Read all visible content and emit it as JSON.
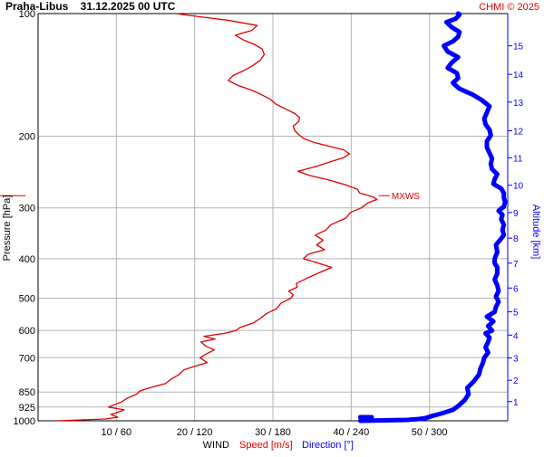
{
  "header": {
    "title": "Praha-Libus    31.12.2025 00 UTC",
    "credit": "CHMI © 2025"
  },
  "colors": {
    "speed": "#e00000",
    "direction": "#0000ff",
    "grid": "#b3b3b3",
    "text": "#000000"
  },
  "chart_data": {
    "type": "line",
    "ylabel": "Pressure [hPa]",
    "y2label": "Altitude [km]",
    "xlabel_parts": {
      "wind": "WIND",
      "speed": "Speed [m/s]",
      "direction": "Direction [°]"
    },
    "y_scale": "log",
    "ylim": [
      1000,
      100
    ],
    "pressure_ticks": [
      {
        "p": 100,
        "label": "100"
      },
      {
        "p": 200,
        "label": "200"
      },
      {
        "p": 300,
        "label": "300"
      },
      {
        "p": 400,
        "label": "400"
      },
      {
        "p": 500,
        "label": "500"
      },
      {
        "p": 600,
        "label": "600"
      },
      {
        "p": 700,
        "label": "700"
      },
      {
        "p": 850,
        "label": "850"
      },
      {
        "p": 925,
        "label": "925"
      },
      {
        "p": 1000,
        "label": "1000"
      }
    ],
    "x_ticks": [
      {
        "speed": 10,
        "dir": 60,
        "label": "10 / 60"
      },
      {
        "speed": 20,
        "dir": 120,
        "label": "20 / 120"
      },
      {
        "speed": 30,
        "dir": 180,
        "label": "30 / 180"
      },
      {
        "speed": 40,
        "dir": 240,
        "label": "40 / 240"
      },
      {
        "speed": 50,
        "dir": 300,
        "label": "50 / 300"
      }
    ],
    "speed_range": [
      0,
      60
    ],
    "direction_range": [
      0,
      360
    ],
    "altitude_ticks": [
      {
        "p": 897,
        "label": "1"
      },
      {
        "p": 795,
        "label": "2"
      },
      {
        "p": 701,
        "label": "3"
      },
      {
        "p": 616,
        "label": "4"
      },
      {
        "p": 540,
        "label": "5"
      },
      {
        "p": 472,
        "label": "6"
      },
      {
        "p": 410,
        "label": "7"
      },
      {
        "p": 356,
        "label": "8"
      },
      {
        "p": 308,
        "label": "9"
      },
      {
        "p": 264,
        "label": "10"
      },
      {
        "p": 226,
        "label": "11"
      },
      {
        "p": 194,
        "label": "12"
      },
      {
        "p": 165,
        "label": "13"
      },
      {
        "p": 141,
        "label": "14"
      },
      {
        "p": 120,
        "label": "15"
      }
    ],
    "max_wind": {
      "label": "MXWS",
      "p": 280,
      "speed": 43.3
    },
    "series": [
      {
        "name": "Speed [m/s]",
        "points": [
          [
            1000,
            2.4
          ],
          [
            990,
            8.6
          ],
          [
            980,
            10.2
          ],
          [
            965,
            9.3
          ],
          [
            948,
            10.5
          ],
          [
            940,
            11.0
          ],
          [
            925,
            9.0
          ],
          [
            900,
            10.6
          ],
          [
            880,
            11.4
          ],
          [
            860,
            12.6
          ],
          [
            845,
            13.0
          ],
          [
            830,
            14.2
          ],
          [
            810,
            16.3
          ],
          [
            790,
            17.0
          ],
          [
            770,
            18.0
          ],
          [
            750,
            18.6
          ],
          [
            735,
            20.0
          ],
          [
            720,
            21.6
          ],
          [
            700,
            20.7
          ],
          [
            685,
            21.5
          ],
          [
            670,
            22.5
          ],
          [
            655,
            21.4
          ],
          [
            640,
            20.8
          ],
          [
            630,
            22.6
          ],
          [
            620,
            21.2
          ],
          [
            610,
            23.8
          ],
          [
            600,
            25.3
          ],
          [
            590,
            25.8
          ],
          [
            575,
            27.5
          ],
          [
            560,
            28.4
          ],
          [
            545,
            29.2
          ],
          [
            530,
            30.5
          ],
          [
            515,
            31.0
          ],
          [
            500,
            32.3
          ],
          [
            490,
            32.6
          ],
          [
            480,
            32.0
          ],
          [
            470,
            33.1
          ],
          [
            460,
            33.0
          ],
          [
            445,
            34.5
          ],
          [
            432,
            36.0
          ],
          [
            420,
            37.5
          ],
          [
            410,
            35.8
          ],
          [
            400,
            33.9
          ],
          [
            390,
            34.5
          ],
          [
            380,
            36.6
          ],
          [
            370,
            35.6
          ],
          [
            360,
            36.4
          ],
          [
            350,
            35.4
          ],
          [
            340,
            36.8
          ],
          [
            330,
            37.4
          ],
          [
            318,
            39.3
          ],
          [
            308,
            39.9
          ],
          [
            300,
            41.3
          ],
          [
            292,
            42.1
          ],
          [
            286,
            43.3
          ],
          [
            282,
            42.8
          ],
          [
            276,
            41.1
          ],
          [
            270,
            40.8
          ],
          [
            263,
            39.2
          ],
          [
            256,
            37.1
          ],
          [
            250,
            34.8
          ],
          [
            244,
            33.2
          ],
          [
            238,
            35.3
          ],
          [
            232,
            37.1
          ],
          [
            226,
            39.0
          ],
          [
            221,
            39.8
          ],
          [
            216,
            39.0
          ],
          [
            212,
            37.3
          ],
          [
            207,
            35.2
          ],
          [
            203,
            34.0
          ],
          [
            199,
            33.4
          ],
          [
            194,
            32.8
          ],
          [
            189,
            32.6
          ],
          [
            184,
            33.3
          ],
          [
            180,
            33.4
          ],
          [
            176,
            32.8
          ],
          [
            171,
            31.5
          ],
          [
            167,
            30.4
          ],
          [
            162,
            29.6
          ],
          [
            158,
            28.5
          ],
          [
            154,
            27.2
          ],
          [
            150,
            25.5
          ],
          [
            146,
            24.3
          ],
          [
            142,
            24.9
          ],
          [
            138,
            26.3
          ],
          [
            134,
            27.5
          ],
          [
            130,
            28.4
          ],
          [
            126,
            28.9
          ],
          [
            122,
            28.6
          ],
          [
            119,
            27.6
          ],
          [
            116,
            26.2
          ],
          [
            113,
            25.2
          ],
          [
            110,
            27.3
          ],
          [
            107,
            28.0
          ],
          [
            104,
            24.5
          ],
          [
            102,
            21.0
          ],
          [
            100.5,
            18.4
          ],
          [
            100,
            17.7
          ]
        ]
      },
      {
        "name": "Direction [°]",
        "points": [
          [
            1000,
            247
          ],
          [
            995,
            283
          ],
          [
            990,
            292
          ],
          [
            985,
            297
          ],
          [
            975,
            301
          ],
          [
            960,
            309
          ],
          [
            940,
            318
          ],
          [
            920,
            322
          ],
          [
            890,
            327
          ],
          [
            860,
            330
          ],
          [
            830,
            329
          ],
          [
            800,
            334
          ],
          [
            770,
            338
          ],
          [
            745,
            339
          ],
          [
            720,
            341
          ],
          [
            700,
            342
          ],
          [
            680,
            345
          ],
          [
            660,
            343
          ],
          [
            640,
            345
          ],
          [
            625,
            346
          ],
          [
            610,
            343
          ],
          [
            600,
            348
          ],
          [
            585,
            345
          ],
          [
            570,
            349
          ],
          [
            555,
            344
          ],
          [
            540,
            350
          ],
          [
            525,
            351
          ],
          [
            510,
            353
          ],
          [
            495,
            351
          ],
          [
            480,
            353
          ],
          [
            465,
            352
          ],
          [
            450,
            350
          ],
          [
            435,
            352
          ],
          [
            420,
            352
          ],
          [
            410,
            350
          ],
          [
            400,
            350
          ],
          [
            385,
            352
          ],
          [
            370,
            351
          ],
          [
            360,
            354
          ],
          [
            350,
            357
          ],
          [
            340,
            356
          ],
          [
            330,
            357
          ],
          [
            320,
            355
          ],
          [
            312,
            356
          ],
          [
            305,
            353
          ],
          [
            298,
            357
          ],
          [
            290,
            358
          ],
          [
            283,
            357
          ],
          [
            276,
            357
          ],
          [
            269,
            355
          ],
          [
            262,
            349
          ],
          [
            255,
            350
          ],
          [
            248,
            352
          ],
          [
            241,
            348
          ],
          [
            234,
            347
          ],
          [
            227,
            348
          ],
          [
            220,
            346
          ],
          [
            213,
            344
          ],
          [
            206,
            344
          ],
          [
            199,
            347
          ],
          [
            193,
            346
          ],
          [
            187,
            343
          ],
          [
            181,
            342
          ],
          [
            175,
            344
          ],
          [
            169,
            346
          ],
          [
            163,
            340
          ],
          [
            158,
            333
          ],
          [
            153,
            323
          ],
          [
            148,
            318
          ],
          [
            144,
            322
          ],
          [
            140,
            321
          ],
          [
            136,
            314
          ],
          [
            132,
            317
          ],
          [
            128,
            322
          ],
          [
            124,
            314
          ],
          [
            120,
            311
          ],
          [
            117,
            318
          ],
          [
            114,
            322
          ],
          [
            111,
            323
          ],
          [
            108,
            317
          ],
          [
            105,
            313
          ],
          [
            103,
            320
          ],
          [
            101.5,
            322
          ],
          [
            100.5,
            323
          ],
          [
            100,
            322
          ]
        ]
      }
    ]
  }
}
